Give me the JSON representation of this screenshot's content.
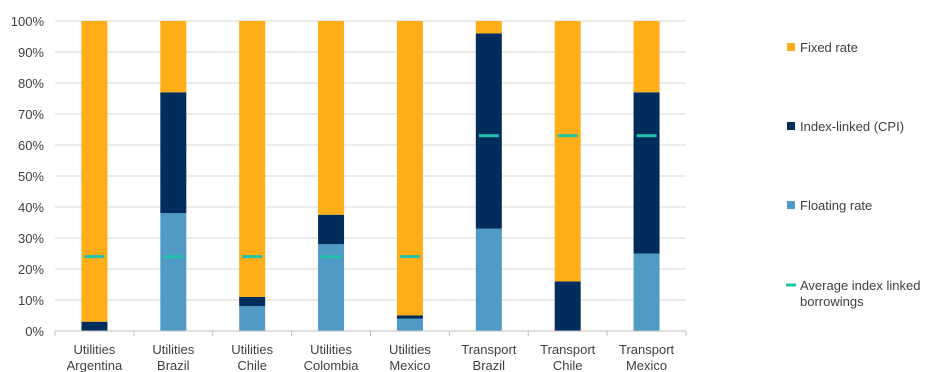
{
  "chart_data": {
    "type": "bar",
    "stacked": true,
    "categories": [
      [
        "Utilities",
        "Argentina"
      ],
      [
        "Utilities",
        "Brazil"
      ],
      [
        "Utilities",
        "Chile"
      ],
      [
        "Utilities",
        "Colombia"
      ],
      [
        "Utilities",
        "Mexico"
      ],
      [
        "Transport",
        "Brazil"
      ],
      [
        "Transport",
        "Chile"
      ],
      [
        "Transport",
        "Mexico"
      ]
    ],
    "series": [
      {
        "name": "Floating rate",
        "color": "#4f9bc5",
        "values": [
          0,
          38,
          8,
          28,
          4,
          33,
          0,
          25
        ]
      },
      {
        "name": "Index-linked (CPI)",
        "color": "#002d5c",
        "values": [
          3,
          39,
          3,
          9.5,
          1,
          63,
          16,
          52
        ]
      },
      {
        "name": "Fixed rate",
        "color": "#ffae17",
        "values": [
          97,
          23,
          89,
          62.5,
          95,
          4,
          84,
          23
        ]
      }
    ],
    "average": {
      "name": "Average index linked borrowings",
      "color": "#22c3a6",
      "values": [
        24,
        24,
        24,
        24,
        24,
        63,
        63,
        63
      ]
    },
    "legend_order": [
      "Fixed rate",
      "Index-linked (CPI)",
      "Floating rate",
      "Average index linked borrowings"
    ],
    "legend_labels": {
      "Fixed rate": [
        "Fixed rate"
      ],
      "Index-linked (CPI)": [
        "Index-linked (CPI)"
      ],
      "Floating rate": [
        "Floating rate"
      ],
      "Average index linked borrowings": [
        "Average index linked",
        "borrowings"
      ]
    },
    "yticks": [
      "0%",
      "10%",
      "20%",
      "30%",
      "40%",
      "50%",
      "60%",
      "70%",
      "80%",
      "90%",
      "100%"
    ],
    "ylim": [
      0,
      100
    ],
    "grid": true,
    "legend_position": "right"
  }
}
